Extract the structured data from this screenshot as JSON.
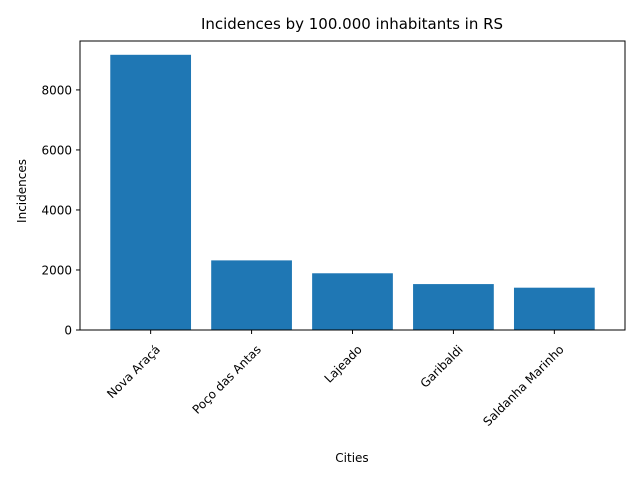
{
  "chart_data": {
    "type": "bar",
    "title": "Incidences by 100.000 inhabitants in RS",
    "xlabel": "Cities",
    "ylabel": "Incidences",
    "categories": [
      "Nova Araçá",
      "Poço das Antas",
      "Lajeado",
      "Garibaldi",
      "Saldanha Marinho"
    ],
    "values": [
      9170,
      2320,
      1890,
      1530,
      1410
    ],
    "ylim": [
      0,
      9630
    ],
    "yticks": [
      0,
      2000,
      4000,
      6000,
      8000
    ],
    "x_tick_rotation_deg": 45,
    "grid": false,
    "legend": "none",
    "bar_color": "#1f77b4"
  }
}
